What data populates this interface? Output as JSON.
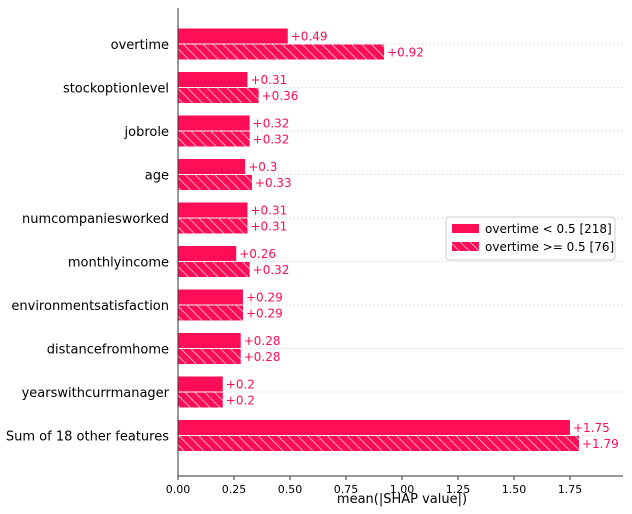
{
  "chart_data": {
    "type": "bar",
    "orientation": "horizontal",
    "categories": [
      "overtime",
      "stockoptionlevel",
      "jobrole",
      "age",
      "numcompaniesworked",
      "monthlyincome",
      "environmentsatisfaction",
      "distancefromhome",
      "yearswithcurrmanager",
      "Sum of 18 other features"
    ],
    "series": [
      {
        "name": "overtime < 0.5 [218]",
        "pattern": "solid",
        "values": [
          0.49,
          0.31,
          0.32,
          0.3,
          0.31,
          0.26,
          0.29,
          0.28,
          0.2,
          1.75
        ],
        "labels": [
          "+0.49",
          "+0.31",
          "+0.32",
          "+0.3",
          "+0.31",
          "+0.26",
          "+0.29",
          "+0.28",
          "+0.2",
          "+1.75"
        ]
      },
      {
        "name": "overtime >= 0.5 [76]",
        "pattern": "hatched",
        "values": [
          0.92,
          0.36,
          0.32,
          0.33,
          0.31,
          0.32,
          0.29,
          0.28,
          0.2,
          1.79
        ],
        "labels": [
          "+0.92",
          "+0.36",
          "+0.32",
          "+0.33",
          "+0.31",
          "+0.32",
          "+0.29",
          "+0.28",
          "+0.2",
          "+1.79"
        ]
      }
    ],
    "xlabel": "mean(|SHAP value|)",
    "xlim": [
      0,
      1.95
    ],
    "xticks": [
      "0.00",
      "0.25",
      "0.50",
      "0.75",
      "1.00",
      "1.25",
      "1.50",
      "1.75"
    ],
    "xtick_values": [
      0,
      0.25,
      0.5,
      0.75,
      1.0,
      1.25,
      1.5,
      1.75
    ],
    "grid": "horizontal dotted row separators",
    "legend_position": "right-middle",
    "colors": {
      "bar": "#ff0d57",
      "hatch": "#ffffff",
      "label": "#ff0d57",
      "separator": "#cccccc",
      "axis": "#333333"
    }
  }
}
